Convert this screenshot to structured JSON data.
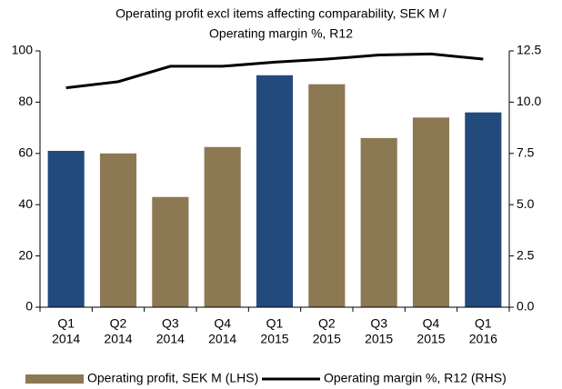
{
  "chart_data": {
    "type": "bar-line",
    "title": [
      "Operating profit excl items affecting comparability, SEK M /",
      "Operating margin %, R12"
    ],
    "categories": [
      [
        "Q1",
        "2014"
      ],
      [
        "Q2",
        "2014"
      ],
      [
        "Q3",
        "2014"
      ],
      [
        "Q4",
        "2014"
      ],
      [
        "Q1",
        "2015"
      ],
      [
        "Q2",
        "2015"
      ],
      [
        "Q3",
        "2015"
      ],
      [
        "Q4",
        "2015"
      ],
      [
        "Q1",
        "2016"
      ]
    ],
    "series": [
      {
        "name": "Operating profit, SEK M (LHS)",
        "type": "bar",
        "color": "#8c7853",
        "colors": [
          "#234a7c",
          "#8c7853",
          "#8c7853",
          "#8c7853",
          "#234a7c",
          "#8c7853",
          "#8c7853",
          "#8c7853",
          "#234a7c"
        ],
        "values": [
          61,
          60,
          43,
          62.5,
          90.5,
          87,
          66,
          74,
          76
        ]
      },
      {
        "name": "Operating margin %, R12 (RHS)",
        "type": "line",
        "axis": "y2",
        "color": "#000000",
        "values": [
          10.7,
          11.0,
          11.75,
          11.75,
          11.95,
          12.1,
          12.3,
          12.35,
          12.1
        ]
      }
    ],
    "ylim": [
      0,
      100
    ],
    "yticks": [
      0,
      20,
      40,
      60,
      80,
      100
    ],
    "y2lim": [
      0,
      12.5
    ],
    "y2ticks": [
      {
        "value": 0,
        "label": "0.0"
      },
      2.5,
      {
        "value": 5,
        "label": "5.0"
      },
      7.5,
      {
        "value": 10,
        "label": "10.0"
      },
      12.5
    ],
    "grid": false,
    "legend": "bottom"
  }
}
